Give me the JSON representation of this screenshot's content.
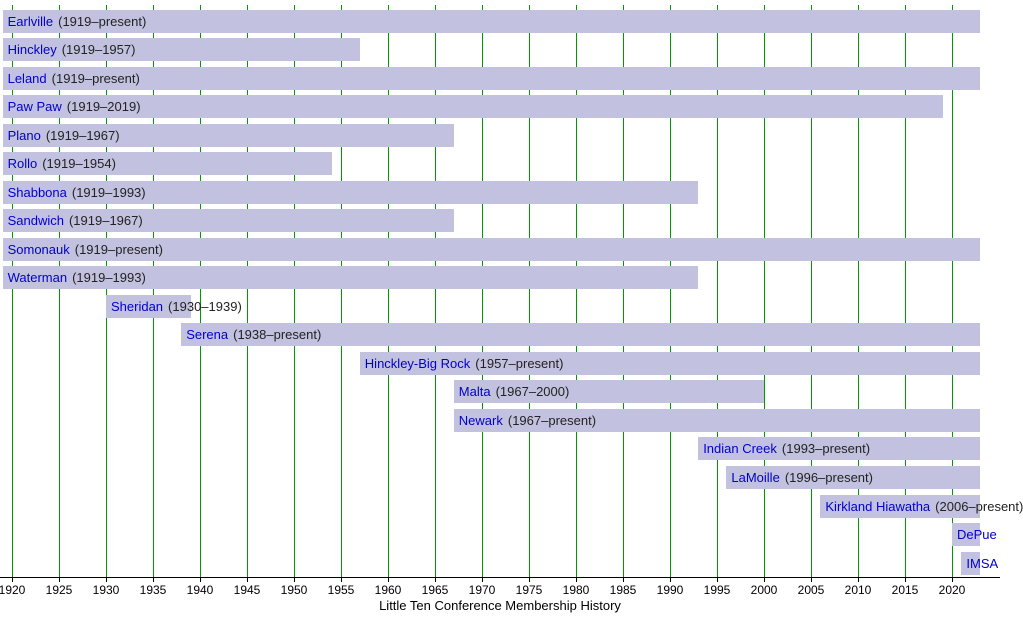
{
  "chart_data": {
    "type": "bar",
    "subtype": "timeline-gantt",
    "xlabel": "Little Ten Conference Membership History",
    "present_year": 2023,
    "x_domain": [
      1919,
      2023
    ],
    "tick_years": [
      1920,
      1925,
      1930,
      1935,
      1940,
      1945,
      1950,
      1955,
      1960,
      1965,
      1970,
      1975,
      1980,
      1985,
      1990,
      1995,
      2000,
      2005,
      2010,
      2015,
      2020
    ],
    "bars": [
      {
        "name": "Earlville",
        "years_label": "(1919–present)",
        "start": 1919,
        "end": "present"
      },
      {
        "name": "Hinckley",
        "years_label": "(1919–1957)",
        "start": 1919,
        "end": 1957
      },
      {
        "name": "Leland",
        "years_label": "(1919–present)",
        "start": 1919,
        "end": "present"
      },
      {
        "name": "Paw Paw",
        "years_label": "(1919–2019)",
        "start": 1919,
        "end": 2019
      },
      {
        "name": "Plano",
        "years_label": "(1919–1967)",
        "start": 1919,
        "end": 1967
      },
      {
        "name": "Rollo",
        "years_label": "(1919–1954)",
        "start": 1919,
        "end": 1954
      },
      {
        "name": "Shabbona",
        "years_label": "(1919–1993)",
        "start": 1919,
        "end": 1993
      },
      {
        "name": "Sandwich",
        "years_label": "(1919–1967)",
        "start": 1919,
        "end": 1967
      },
      {
        "name": "Somonauk",
        "years_label": "(1919–present)",
        "start": 1919,
        "end": "present"
      },
      {
        "name": "Waterman",
        "years_label": "(1919–1993)",
        "start": 1919,
        "end": 1993
      },
      {
        "name": "Sheridan",
        "years_label": "(1930–1939)",
        "start": 1930,
        "end": 1939
      },
      {
        "name": "Serena",
        "years_label": "(1938–present)",
        "start": 1938,
        "end": "present"
      },
      {
        "name": "Hinckley-Big Rock",
        "years_label": "(1957–present)",
        "start": 1957,
        "end": "present"
      },
      {
        "name": "Malta",
        "years_label": "(1967–2000)",
        "start": 1967,
        "end": 2000
      },
      {
        "name": "Newark",
        "years_label": "(1967–present)",
        "start": 1967,
        "end": "present"
      },
      {
        "name": "Indian Creek",
        "years_label": "(1993–present)",
        "start": 1993,
        "end": "present"
      },
      {
        "name": "LaMoille",
        "years_label": "(1996–present)",
        "start": 1996,
        "end": "present"
      },
      {
        "name": "Kirkland Hiawatha",
        "years_label": "(2006–present)",
        "start": 2006,
        "end": "present"
      },
      {
        "name": "DePue",
        "years_label": "",
        "start": 2020,
        "end": "present"
      },
      {
        "name": "IMSA",
        "years_label": "",
        "start": 2021,
        "end": "present"
      }
    ],
    "colors": {
      "bar": "#c2c2e0",
      "grid": "#009a00",
      "name_text": "#0000cc",
      "years_text": "#222222",
      "axis": "#000000",
      "background": "#ffffff"
    }
  }
}
